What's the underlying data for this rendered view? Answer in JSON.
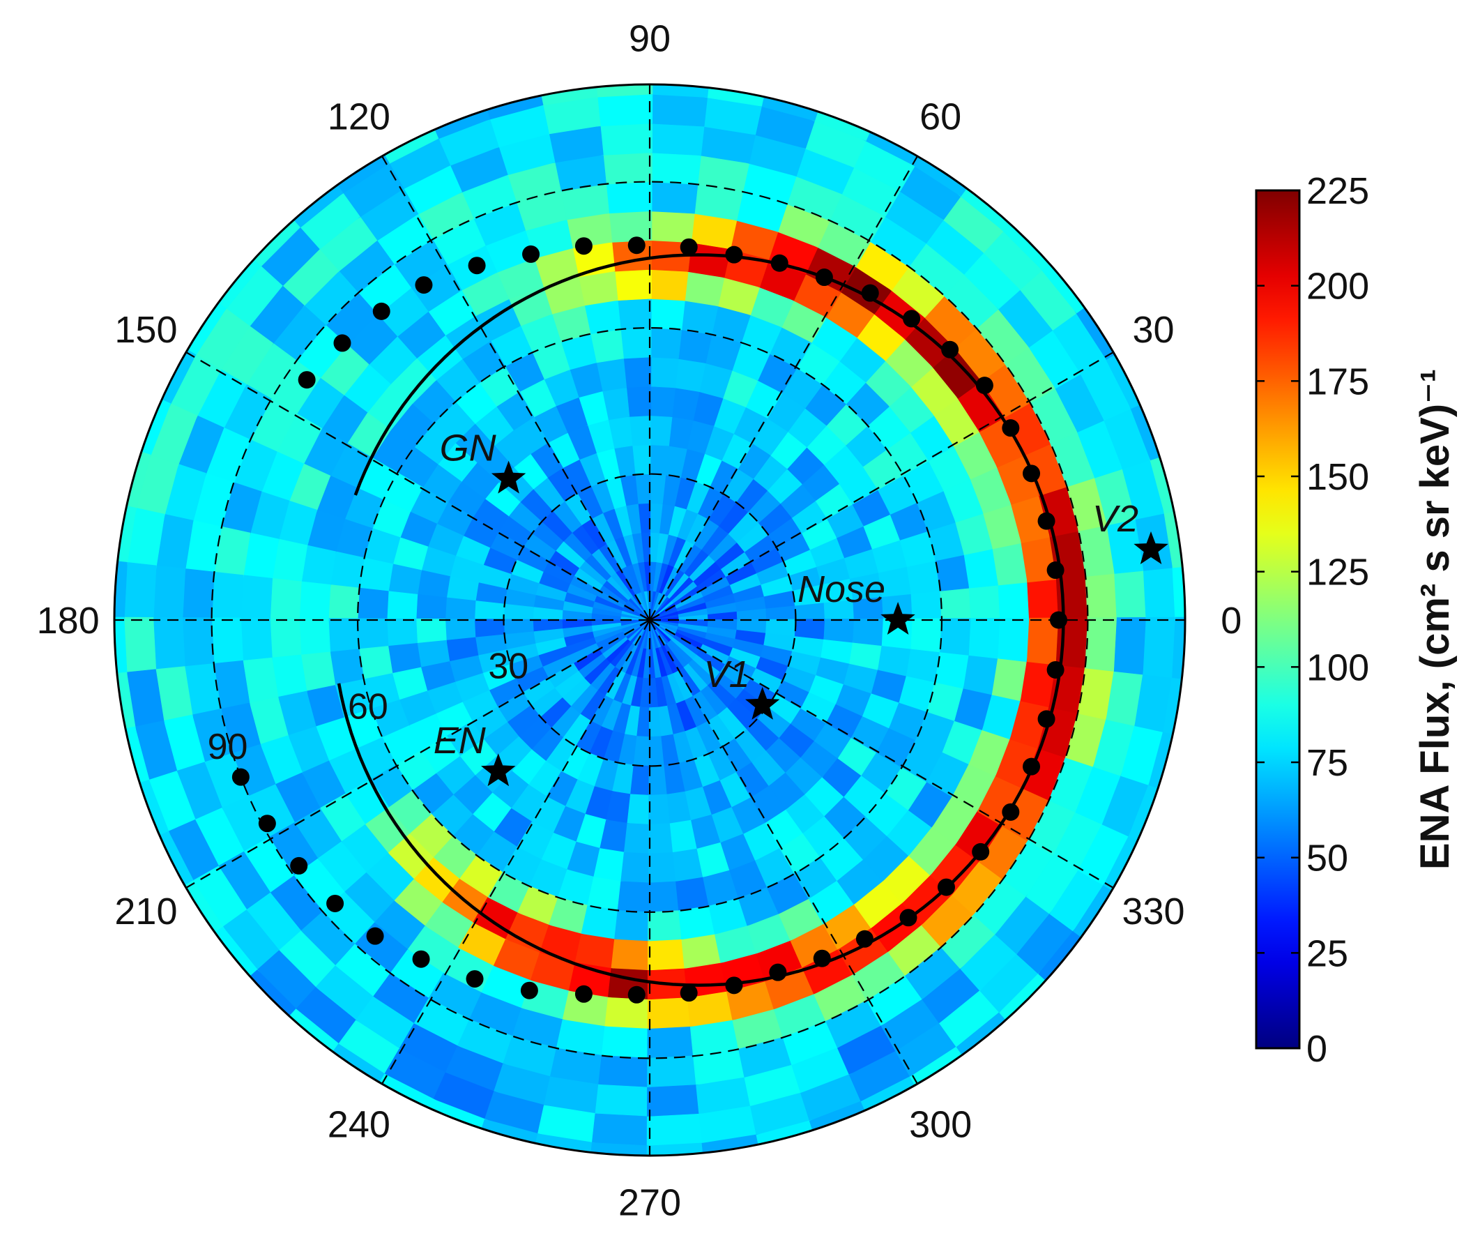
{
  "chart_data": {
    "type": "heatmap",
    "projection": "polar",
    "title": "",
    "angle_tick_labels": [
      "0",
      "30",
      "60",
      "90",
      "120",
      "150",
      "180",
      "210",
      "240",
      "270",
      "300",
      "330"
    ],
    "radial_tick_labels": [
      "30",
      "60",
      "90"
    ],
    "radial_range_deg": [
      0,
      110
    ],
    "grid": true,
    "colorbar": {
      "label": "ENA Flux, (cm² s sr keV)⁻¹",
      "range": [
        0,
        225
      ],
      "ticks": [
        "0",
        "25",
        "50",
        "75",
        "100",
        "125",
        "150",
        "175",
        "200",
        "225"
      ],
      "colormap": "jet"
    },
    "ribbon": {
      "fit_circle_radius_deg": 75,
      "fit_circle_center": {
        "angle_deg": 0,
        "radius_deg": 10
      },
      "peak_flux": 215,
      "ribbon_arc_deg": [
        -120,
        90
      ],
      "background_flux": 80,
      "peak_points": [
        {
          "angle_deg": 145,
          "radius_deg": 86
        },
        {
          "angle_deg": 138,
          "radius_deg": 85
        },
        {
          "angle_deg": 131,
          "radius_deg": 84
        },
        {
          "angle_deg": 124,
          "radius_deg": 83
        },
        {
          "angle_deg": 116,
          "radius_deg": 81
        },
        {
          "angle_deg": 108,
          "radius_deg": 79
        },
        {
          "angle_deg": 100,
          "radius_deg": 78
        },
        {
          "angle_deg": 92,
          "radius_deg": 77
        },
        {
          "angle_deg": 84,
          "radius_deg": 77
        },
        {
          "angle_deg": 77,
          "radius_deg": 77
        },
        {
          "angle_deg": 70,
          "radius_deg": 78
        },
        {
          "angle_deg": 63,
          "radius_deg": 79
        },
        {
          "angle_deg": 56,
          "radius_deg": 81
        },
        {
          "angle_deg": 49,
          "radius_deg": 82
        },
        {
          "angle_deg": 42,
          "radius_deg": 83
        },
        {
          "angle_deg": 35,
          "radius_deg": 84
        },
        {
          "angle_deg": 28,
          "radius_deg": 84
        },
        {
          "angle_deg": 21,
          "radius_deg": 84
        },
        {
          "angle_deg": 14,
          "radius_deg": 84
        },
        {
          "angle_deg": 7,
          "radius_deg": 84
        },
        {
          "angle_deg": 0,
          "radius_deg": 84
        },
        {
          "angle_deg": -7,
          "radius_deg": 84
        },
        {
          "angle_deg": -14,
          "radius_deg": 84
        },
        {
          "angle_deg": -21,
          "radius_deg": 84
        },
        {
          "angle_deg": -28,
          "radius_deg": 84
        },
        {
          "angle_deg": -35,
          "radius_deg": 83
        },
        {
          "angle_deg": -42,
          "radius_deg": 82
        },
        {
          "angle_deg": -49,
          "radius_deg": 81
        },
        {
          "angle_deg": -56,
          "radius_deg": 79
        },
        {
          "angle_deg": -63,
          "radius_deg": 78
        },
        {
          "angle_deg": -70,
          "radius_deg": 77
        },
        {
          "angle_deg": -77,
          "radius_deg": 77
        },
        {
          "angle_deg": -84,
          "radius_deg": 77
        },
        {
          "angle_deg": -92,
          "radius_deg": 77
        },
        {
          "angle_deg": -100,
          "radius_deg": 78
        },
        {
          "angle_deg": -108,
          "radius_deg": 80
        },
        {
          "angle_deg": -116,
          "radius_deg": 82
        },
        {
          "angle_deg": -124,
          "radius_deg": 84
        },
        {
          "angle_deg": -131,
          "radius_deg": 86
        },
        {
          "angle_deg": -138,
          "radius_deg": 87
        },
        {
          "angle_deg": -145,
          "radius_deg": 88
        },
        {
          "angle_deg": -152,
          "radius_deg": 89
        },
        {
          "angle_deg": -159,
          "radius_deg": 90
        }
      ]
    },
    "markers": [
      {
        "label": "GN",
        "angle_deg": 135,
        "radius_deg": 41
      },
      {
        "label": "EN",
        "angle_deg": 225,
        "radius_deg": 44
      },
      {
        "label": "V1",
        "angle_deg": 323,
        "radius_deg": 29
      },
      {
        "label": "Nose",
        "angle_deg": 0,
        "radius_deg": 51
      },
      {
        "label": "V2",
        "angle_deg": 8,
        "radius_deg": 104
      }
    ]
  }
}
